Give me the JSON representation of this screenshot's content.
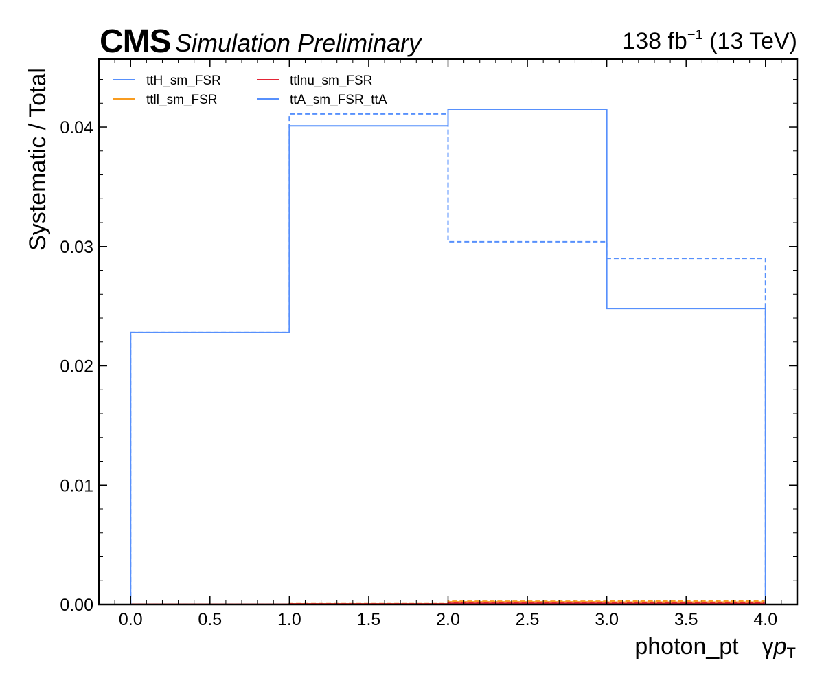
{
  "header": {
    "experiment": "CMS",
    "label": "Simulation Preliminary",
    "lumi_value": "138 fb",
    "lumi_exponent": "−1",
    "lumi_energy": "(13 TeV)"
  },
  "chart_data": {
    "type": "step",
    "xlabel": "photon_pt",
    "xlabel_symbol": "γ",
    "xlabel_symbol_p": "p",
    "xlabel_symbol_sub": "T",
    "ylabel": "Systematic / Total",
    "xlim": [
      -0.2,
      4.2
    ],
    "ylim": [
      0.0,
      0.0457
    ],
    "bin_edges": [
      0.0,
      1.0,
      2.0,
      3.0,
      4.0
    ],
    "x_ticks": [
      "0.0",
      "0.5",
      "1.0",
      "1.5",
      "2.0",
      "2.5",
      "3.0",
      "3.5",
      "4.0"
    ],
    "x_tick_values": [
      0.0,
      0.5,
      1.0,
      1.5,
      2.0,
      2.5,
      3.0,
      3.5,
      4.0
    ],
    "y_ticks": [
      "0.00",
      "0.01",
      "0.02",
      "0.03",
      "0.04"
    ],
    "y_tick_values": [
      0.0,
      0.01,
      0.02,
      0.03,
      0.04
    ],
    "legend_position": "top-left",
    "legend": [
      {
        "name": "ttH_sm_FSR",
        "color": "#5790fc"
      },
      {
        "name": "ttll_sm_FSR",
        "color": "#f89c20"
      },
      {
        "name": "ttlnu_sm_FSR",
        "color": "#e42536"
      },
      {
        "name": "ttA_sm_FSR_ttA",
        "color": "#5790fc"
      }
    ],
    "series": [
      {
        "name": "ttH_sm_FSR",
        "color": "#5790fc",
        "style": "solid",
        "values": [
          1e-05,
          2e-05,
          3e-05,
          3e-05
        ]
      },
      {
        "name": "ttH_sm_FSR",
        "color": "#5790fc",
        "style": "dashed",
        "values": [
          1e-05,
          2e-05,
          3e-05,
          3e-05
        ]
      },
      {
        "name": "ttll_sm_FSR",
        "color": "#f89c20",
        "style": "solid",
        "values": [
          3e-05,
          6e-05,
          0.00022,
          0.0002
        ]
      },
      {
        "name": "ttll_sm_FSR",
        "color": "#f89c20",
        "style": "dashed",
        "values": [
          3e-05,
          7e-05,
          0.00028,
          0.00032
        ]
      },
      {
        "name": "ttlnu_sm_FSR",
        "color": "#e42536",
        "style": "solid",
        "values": [
          2e-05,
          4e-05,
          0.0001,
          8e-05
        ]
      },
      {
        "name": "ttlnu_sm_FSR",
        "color": "#e42536",
        "style": "dashed",
        "values": [
          2e-05,
          5e-05,
          0.00015,
          0.00012
        ]
      },
      {
        "name": "ttA_sm_FSR_ttA",
        "color": "#5790fc",
        "style": "solid",
        "values": [
          0.0228,
          0.0401,
          0.0415,
          0.0248
        ]
      },
      {
        "name": "ttA_sm_FSR_ttA",
        "color": "#5790fc",
        "style": "dashed",
        "values": [
          0.0228,
          0.0411,
          0.0304,
          0.029
        ]
      }
    ]
  }
}
